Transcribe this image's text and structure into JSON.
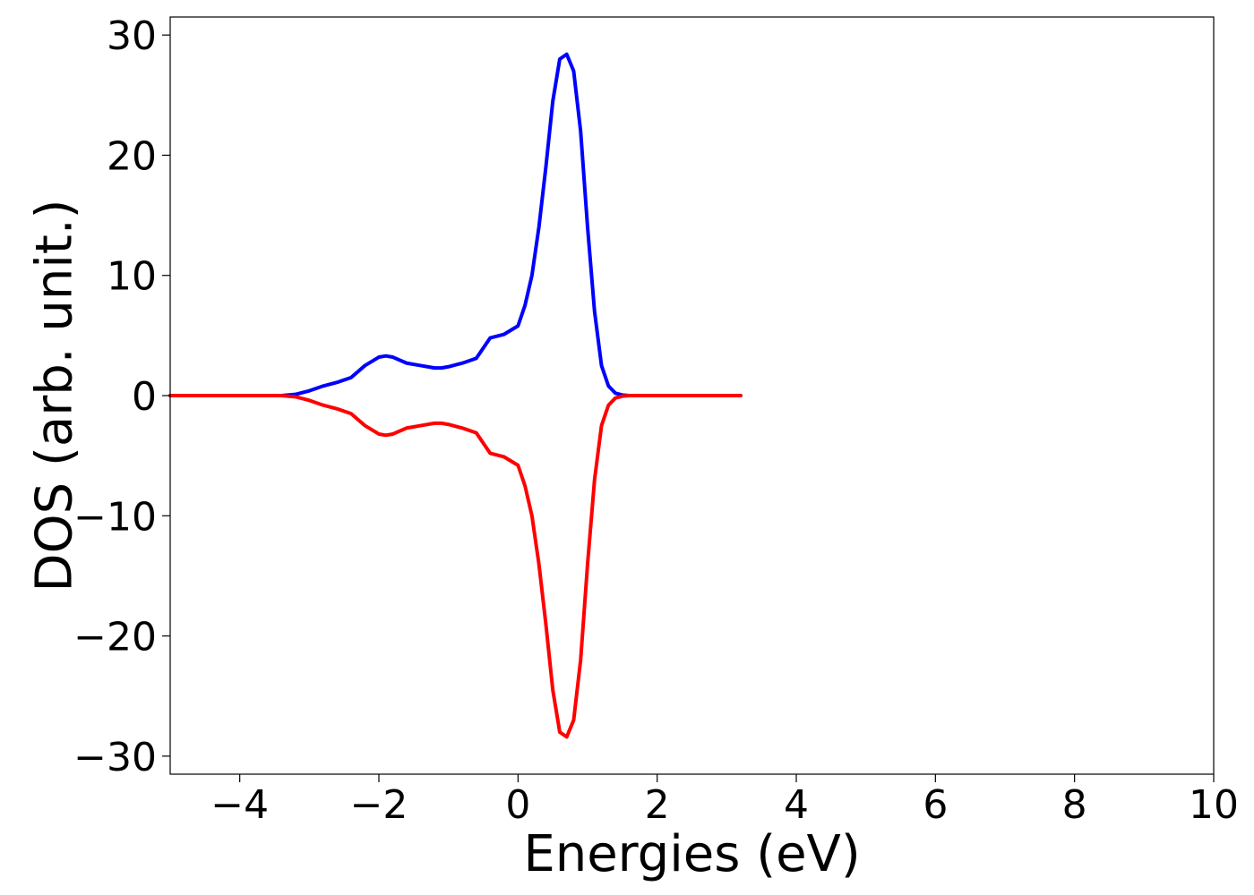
{
  "chart_data": {
    "type": "line",
    "title": "",
    "xlabel": "Energies (eV)",
    "ylabel": "DOS (arb. unit.)",
    "xlim": [
      -5,
      10
    ],
    "ylim": [
      -31.5,
      31.5
    ],
    "xticks": [
      -4,
      -2,
      0,
      2,
      4,
      6,
      8,
      10
    ],
    "yticks": [
      -30,
      -20,
      -10,
      0,
      10,
      20,
      30
    ],
    "xtick_labels": [
      "−4",
      "−2",
      "0",
      "2",
      "4",
      "6",
      "8",
      "10"
    ],
    "ytick_labels": [
      "−30",
      "−20",
      "−10",
      "0",
      "10",
      "20",
      "30"
    ],
    "grid": false,
    "legend": "none",
    "series": [
      {
        "color": "#0000ff",
        "x": [
          -5.0,
          -3.4,
          -3.2,
          -3.0,
          -2.8,
          -2.6,
          -2.4,
          -2.2,
          -2.0,
          -1.9,
          -1.8,
          -1.6,
          -1.4,
          -1.2,
          -1.1,
          -1.0,
          -0.8,
          -0.6,
          -0.4,
          -0.2,
          0.0,
          0.1,
          0.2,
          0.3,
          0.4,
          0.5,
          0.6,
          0.7,
          0.8,
          0.9,
          1.0,
          1.1,
          1.2,
          1.3,
          1.4,
          1.5,
          1.6,
          2.0,
          3.2
        ],
        "y": [
          0,
          0,
          0.1,
          0.4,
          0.8,
          1.1,
          1.5,
          2.5,
          3.2,
          3.3,
          3.2,
          2.7,
          2.5,
          2.3,
          2.3,
          2.4,
          2.7,
          3.1,
          4.8,
          5.1,
          5.8,
          7.5,
          10.0,
          14.0,
          19.0,
          24.5,
          28.0,
          28.4,
          27.0,
          22.0,
          14.0,
          7.0,
          2.5,
          0.8,
          0.2,
          0.05,
          0,
          0,
          0
        ]
      },
      {
        "color": "#ff0000",
        "x": [
          -5.0,
          -3.4,
          -3.2,
          -3.0,
          -2.8,
          -2.6,
          -2.4,
          -2.2,
          -2.0,
          -1.9,
          -1.8,
          -1.6,
          -1.4,
          -1.2,
          -1.1,
          -1.0,
          -0.8,
          -0.6,
          -0.4,
          -0.2,
          0.0,
          0.1,
          0.2,
          0.3,
          0.4,
          0.5,
          0.6,
          0.7,
          0.8,
          0.9,
          1.0,
          1.1,
          1.2,
          1.3,
          1.4,
          1.5,
          1.6,
          2.0,
          3.2
        ],
        "y": [
          0,
          0,
          -0.1,
          -0.4,
          -0.8,
          -1.1,
          -1.5,
          -2.5,
          -3.2,
          -3.3,
          -3.2,
          -2.7,
          -2.5,
          -2.3,
          -2.3,
          -2.4,
          -2.7,
          -3.1,
          -4.8,
          -5.1,
          -5.8,
          -7.5,
          -10.0,
          -14.0,
          -19.0,
          -24.5,
          -28.0,
          -28.4,
          -27.0,
          -22.0,
          -14.0,
          -7.0,
          -2.5,
          -0.8,
          -0.2,
          -0.05,
          0,
          0,
          0
        ]
      }
    ]
  }
}
